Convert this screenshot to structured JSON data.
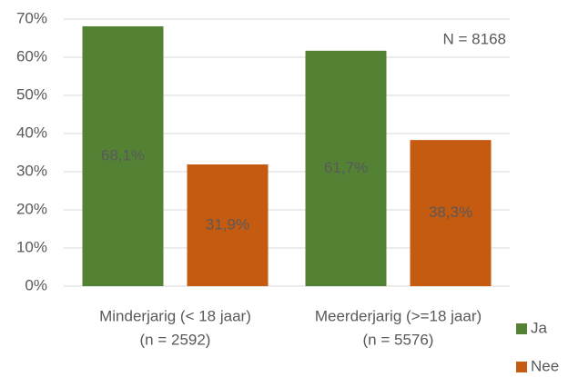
{
  "chart_data": {
    "type": "bar",
    "categories": [
      [
        "Minderjarig (< 18 jaar)",
        "(n = 2592)"
      ],
      [
        "Meerderjarig (>=18 jaar)",
        "(n = 5576)"
      ]
    ],
    "series": [
      {
        "name": "Ja",
        "color": "#548235",
        "values": [
          68.1,
          61.7
        ],
        "value_labels": [
          "68,1%",
          "61,7%"
        ]
      },
      {
        "name": "Nee",
        "color": "#c55a11",
        "values": [
          31.9,
          38.3
        ],
        "value_labels": [
          "31,9%",
          "38,3%"
        ]
      }
    ],
    "ylim": [
      0,
      70
    ],
    "yticks": [
      {
        "value": 0,
        "label": "0%"
      },
      {
        "value": 10,
        "label": "10%"
      },
      {
        "value": 20,
        "label": "20%"
      },
      {
        "value": 30,
        "label": "30%"
      },
      {
        "value": 40,
        "label": "40%"
      },
      {
        "value": 50,
        "label": "50%"
      },
      {
        "value": 60,
        "label": "60%"
      },
      {
        "value": 70,
        "label": "70%"
      }
    ],
    "grid": true,
    "annotation": "N = 8168",
    "legend": "bottom-right"
  }
}
